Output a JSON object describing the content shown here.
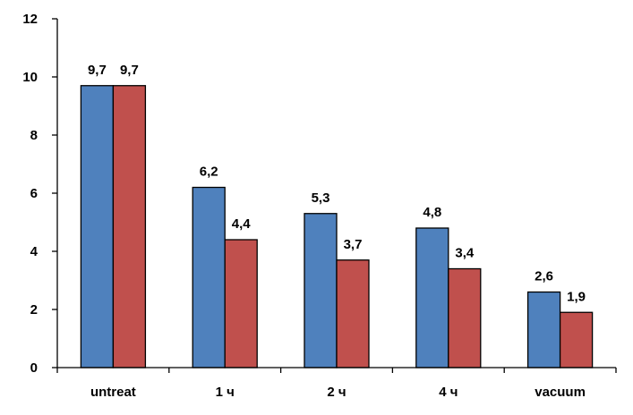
{
  "chart_data": {
    "type": "bar",
    "categories": [
      "untreat",
      "1 ч",
      "2 ч",
      "4 ч",
      "vacuum"
    ],
    "series": [
      {
        "values": [
          9.7,
          6.2,
          5.3,
          4.8,
          2.6
        ],
        "labels": [
          "9,7",
          "6,2",
          "5,3",
          "4,8",
          "2,6"
        ],
        "color": "#4F81BD"
      },
      {
        "values": [
          9.7,
          4.4,
          3.7,
          3.4,
          1.9
        ],
        "labels": [
          "9,7",
          "4,4",
          "3,7",
          "3,4",
          "1,9"
        ],
        "color": "#C0504D"
      }
    ],
    "yticks": [
      0,
      2,
      4,
      6,
      8,
      10,
      12
    ],
    "ytick_labels": [
      "0",
      "2",
      "4",
      "6",
      "8",
      "10",
      "12"
    ],
    "ylim": [
      0,
      12
    ],
    "grid": false,
    "legend": "none",
    "title": "",
    "xlabel": "",
    "ylabel": ""
  }
}
